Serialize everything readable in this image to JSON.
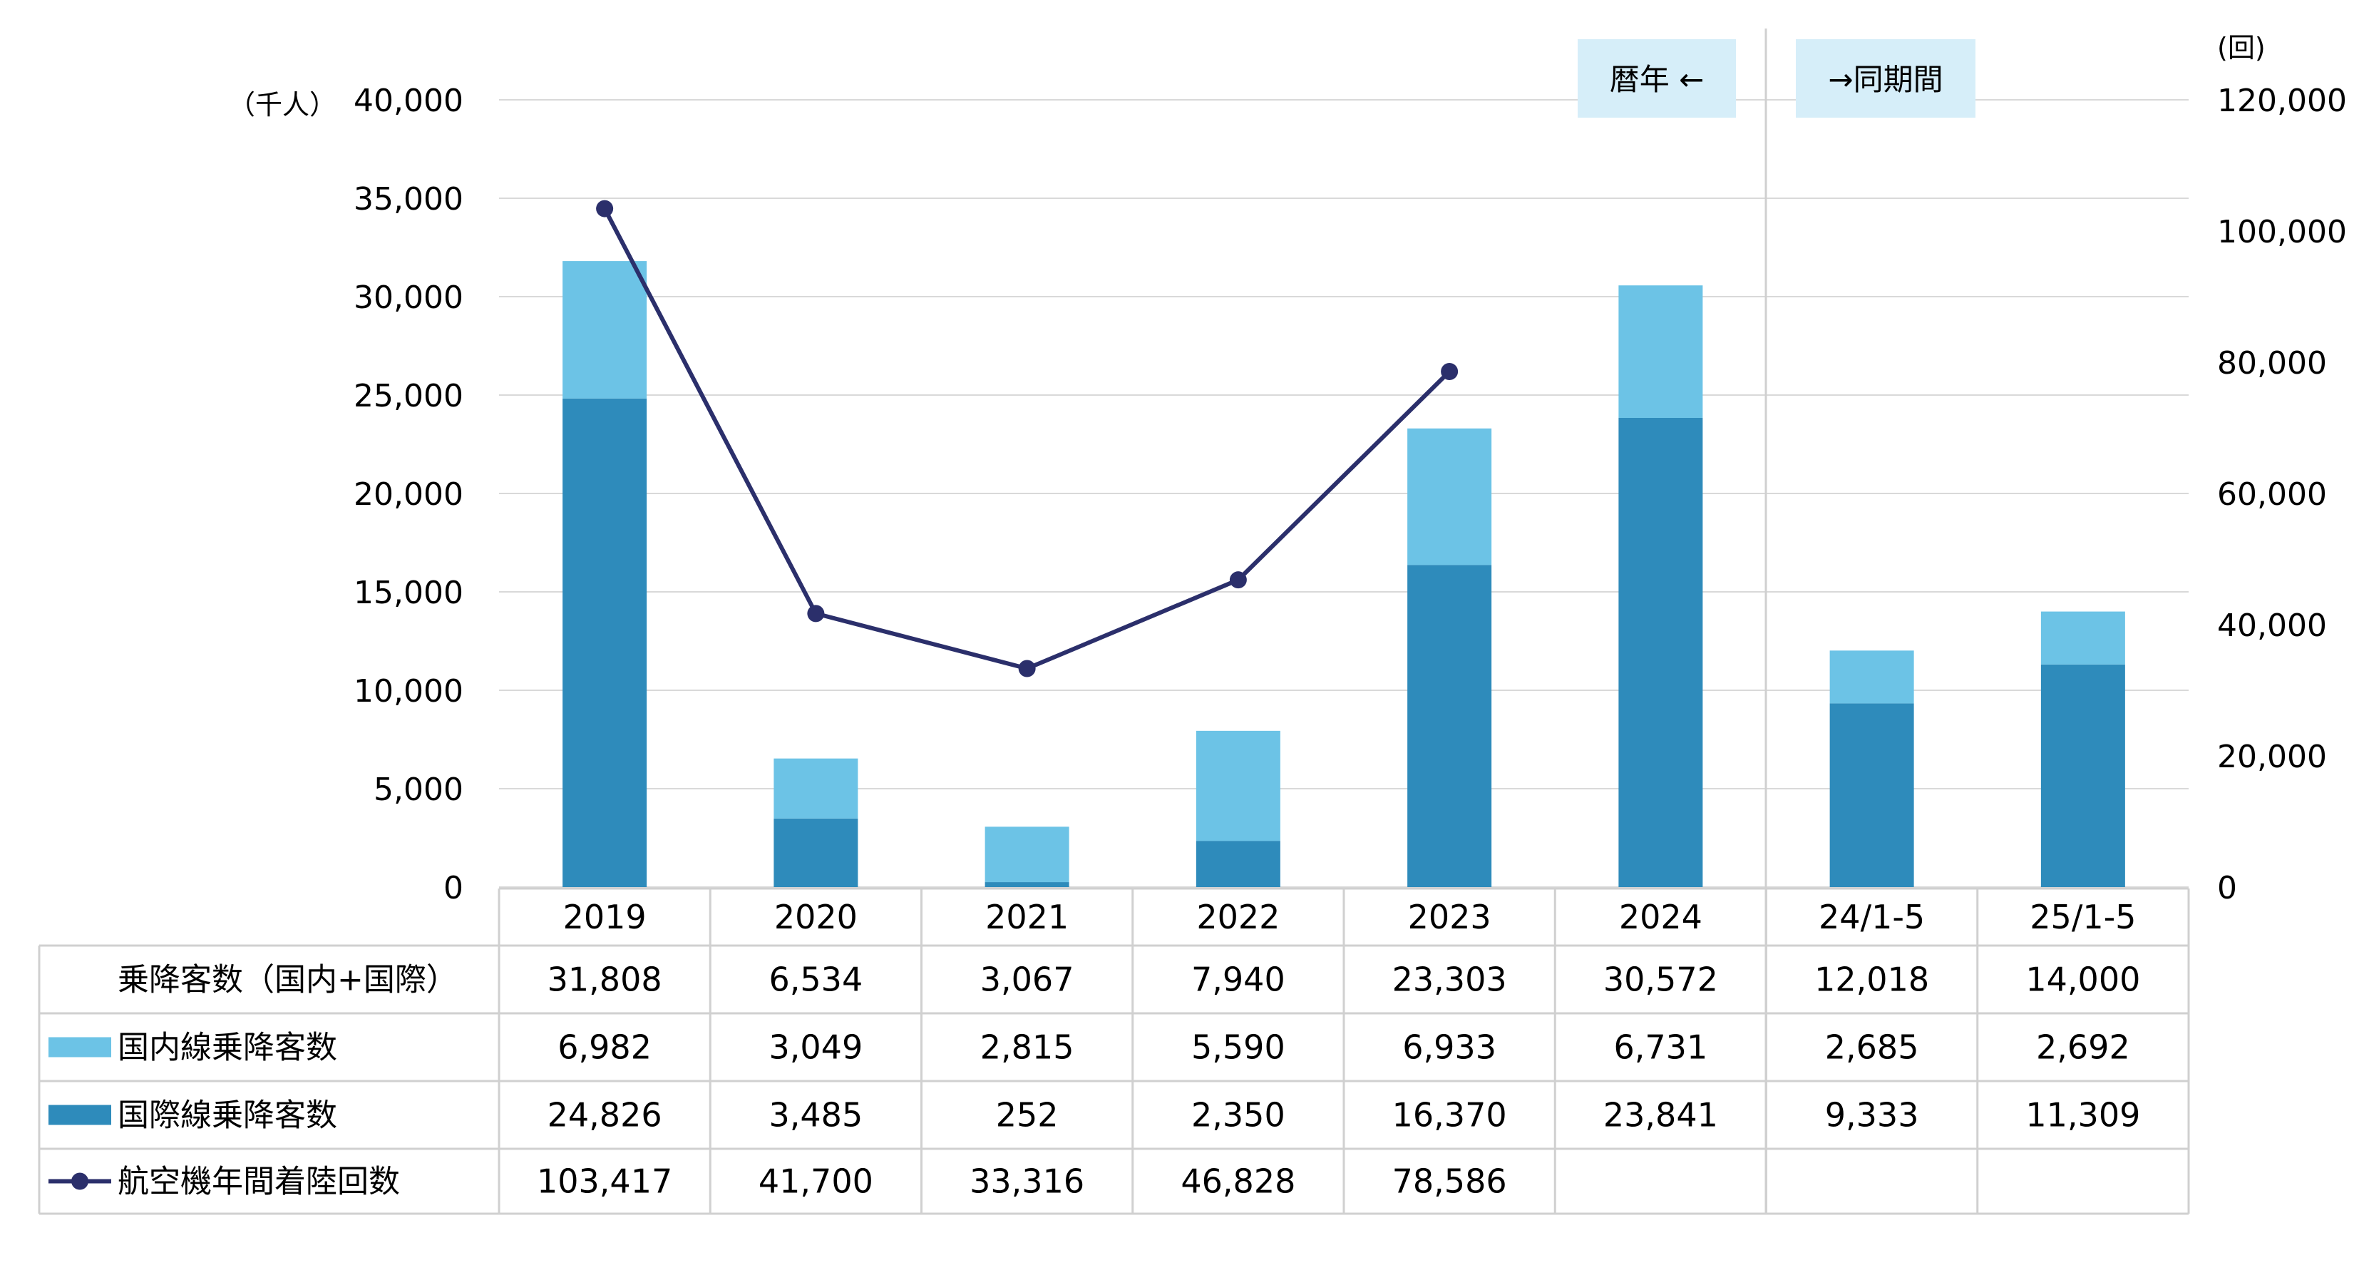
{
  "chart_data": {
    "type": "bar",
    "stacked": true,
    "categories": [
      "2019",
      "2020",
      "2021",
      "2022",
      "2023",
      "2024",
      "24/1-5",
      "25/1-5"
    ],
    "left_axis": {
      "unit_label": "（千人）",
      "ylim": [
        0,
        40000
      ],
      "ticks": [
        "0",
        "5,000",
        "10,000",
        "15,000",
        "20,000",
        "25,000",
        "30,000",
        "35,000",
        "40,000"
      ]
    },
    "right_axis": {
      "unit_label": "(回)",
      "ylim": [
        0,
        120000
      ],
      "ticks": [
        "0",
        "20,000",
        "40,000",
        "60,000",
        "80,000",
        "100,000",
        "120,000"
      ]
    },
    "series": [
      {
        "name": "国際線乗降客数",
        "kind": "bar",
        "color": "#2E8BBB",
        "values": [
          24826,
          3485,
          252,
          2350,
          16370,
          23841,
          9333,
          11309
        ]
      },
      {
        "name": "国内線乗降客数",
        "kind": "bar",
        "color": "#6CC3E6",
        "values": [
          6982,
          3049,
          2815,
          5590,
          6933,
          6731,
          2685,
          2692
        ]
      },
      {
        "name": "航空機年間着陸回数",
        "kind": "line",
        "axis": "right",
        "color": "#2B2F6B",
        "values": [
          103417,
          41700,
          33316,
          46828,
          78586,
          null,
          null,
          null
        ]
      }
    ],
    "annotations": {
      "left_box": "暦年 ←",
      "right_box": "→同期間"
    },
    "grid": true
  },
  "table": {
    "row_labels": [
      "乗降客数（国内+国際）",
      "国内線乗降客数",
      "国際線乗降客数",
      "航空機年間着陸回数"
    ],
    "rows": [
      [
        "31,808",
        "6,534",
        "3,067",
        "7,940",
        "23,303",
        "30,572",
        "12,018",
        "14,000"
      ],
      [
        "6,982",
        "3,049",
        "2,815",
        "5,590",
        "6,933",
        "6,731",
        "2,685",
        "2,692"
      ],
      [
        "24,826",
        "3,485",
        "252",
        "2,350",
        "16,370",
        "23,841",
        "9,333",
        "11,309"
      ],
      [
        "103,417",
        "41,700",
        "33,316",
        "46,828",
        "78,586",
        "",
        "",
        ""
      ]
    ]
  },
  "colors": {
    "grid": "#D9D9D9",
    "annotation_bg": "#D6EEF9",
    "table_border": "#D0D0D0"
  }
}
